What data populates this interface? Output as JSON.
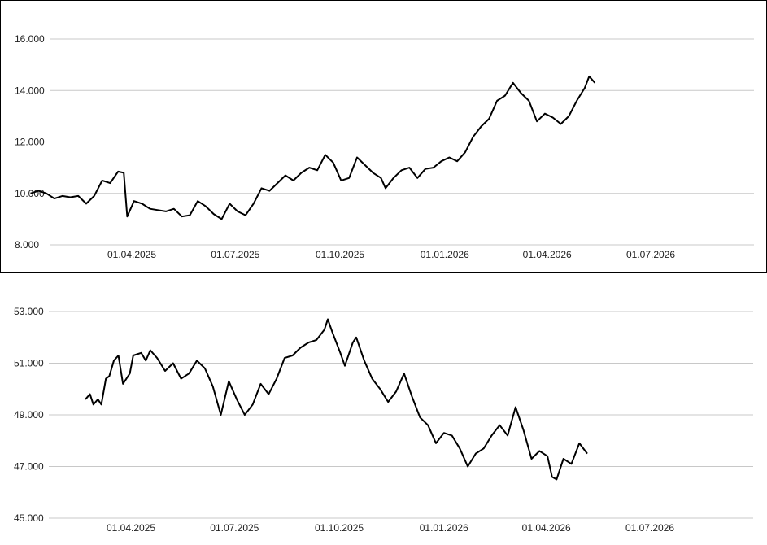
{
  "chart_data": [
    {
      "type": "line",
      "title": "",
      "xlabel": "",
      "ylabel": "",
      "grid": true,
      "legend": "none",
      "xlim": [
        "2025-01-01",
        "2026-09-30"
      ],
      "x_ticks": [
        "01.04.2025",
        "01.07.2025",
        "01.10.2025",
        "01.01.2026",
        "01.04.2026",
        "01.07.2026"
      ],
      "y_ticks": [
        "8.000",
        "10.000",
        "12.000",
        "14.000",
        "16.000"
      ],
      "ylim": [
        8,
        16
      ],
      "series": [
        {
          "color": "#000000",
          "points": [
            [
              "2025-01-02",
              10.0
            ],
            [
              "2025-01-09",
              10.1
            ],
            [
              "2025-01-16",
              10.0
            ],
            [
              "2025-01-23",
              9.8
            ],
            [
              "2025-01-30",
              9.9
            ],
            [
              "2025-02-06",
              9.85
            ],
            [
              "2025-02-13",
              9.9
            ],
            [
              "2025-02-20",
              9.6
            ],
            [
              "2025-02-27",
              9.9
            ],
            [
              "2025-03-06",
              10.5
            ],
            [
              "2025-03-13",
              10.4
            ],
            [
              "2025-03-20",
              10.85
            ],
            [
              "2025-03-25",
              10.8
            ],
            [
              "2025-03-28",
              9.1
            ],
            [
              "2025-04-03",
              9.7
            ],
            [
              "2025-04-10",
              9.6
            ],
            [
              "2025-04-17",
              9.4
            ],
            [
              "2025-04-24",
              9.35
            ],
            [
              "2025-05-01",
              9.3
            ],
            [
              "2025-05-08",
              9.4
            ],
            [
              "2025-05-15",
              9.1
            ],
            [
              "2025-05-22",
              9.15
            ],
            [
              "2025-05-29",
              9.7
            ],
            [
              "2025-06-05",
              9.5
            ],
            [
              "2025-06-12",
              9.2
            ],
            [
              "2025-06-19",
              9.0
            ],
            [
              "2025-06-26",
              9.6
            ],
            [
              "2025-07-03",
              9.3
            ],
            [
              "2025-07-10",
              9.15
            ],
            [
              "2025-07-17",
              9.6
            ],
            [
              "2025-07-24",
              10.2
            ],
            [
              "2025-07-31",
              10.1
            ],
            [
              "2025-08-07",
              10.4
            ],
            [
              "2025-08-14",
              10.7
            ],
            [
              "2025-08-21",
              10.5
            ],
            [
              "2025-08-28",
              10.8
            ],
            [
              "2025-09-04",
              11.0
            ],
            [
              "2025-09-11",
              10.9
            ],
            [
              "2025-09-18",
              11.5
            ],
            [
              "2025-09-25",
              11.2
            ],
            [
              "2025-10-02",
              10.5
            ],
            [
              "2025-10-09",
              10.6
            ],
            [
              "2025-10-16",
              11.4
            ],
            [
              "2025-10-23",
              11.1
            ],
            [
              "2025-10-30",
              10.8
            ],
            [
              "2025-11-06",
              10.6
            ],
            [
              "2025-11-10",
              10.2
            ],
            [
              "2025-11-17",
              10.6
            ],
            [
              "2025-11-24",
              10.9
            ],
            [
              "2025-12-01",
              11.0
            ],
            [
              "2025-12-08",
              10.6
            ],
            [
              "2025-12-15",
              10.95
            ],
            [
              "2025-12-22",
              11.0
            ],
            [
              "2025-12-29",
              11.25
            ],
            [
              "2026-01-05",
              11.4
            ],
            [
              "2026-01-12",
              11.25
            ],
            [
              "2026-01-19",
              11.6
            ],
            [
              "2026-01-26",
              12.2
            ],
            [
              "2026-02-02",
              12.6
            ],
            [
              "2026-02-09",
              12.9
            ],
            [
              "2026-02-16",
              13.6
            ],
            [
              "2026-02-23",
              13.8
            ],
            [
              "2026-03-02",
              14.3
            ],
            [
              "2026-03-09",
              13.9
            ],
            [
              "2026-03-16",
              13.6
            ],
            [
              "2026-03-23",
              12.8
            ],
            [
              "2026-03-30",
              13.1
            ],
            [
              "2026-04-06",
              12.95
            ],
            [
              "2026-04-13",
              12.7
            ],
            [
              "2026-04-20",
              13.0
            ],
            [
              "2026-04-27",
              13.6
            ],
            [
              "2026-05-04",
              14.1
            ],
            [
              "2026-05-08",
              14.55
            ],
            [
              "2026-05-13",
              14.3
            ]
          ]
        }
      ]
    },
    {
      "type": "line",
      "title": "",
      "xlabel": "",
      "ylabel": "",
      "grid": true,
      "legend": "none",
      "xlim": [
        "2025-01-01",
        "2026-09-30"
      ],
      "x_ticks": [
        "01.04.2025",
        "01.07.2025",
        "01.10.2025",
        "01.01.2026",
        "01.04.2026",
        "01.07.2026"
      ],
      "y_ticks": [
        "45.000",
        "47.000",
        "49.000",
        "51.000",
        "53.000"
      ],
      "ylim": [
        45,
        53
      ],
      "series": [
        {
          "color": "#000000",
          "points": [
            [
              "2025-02-20",
              49.6
            ],
            [
              "2025-02-24",
              49.8
            ],
            [
              "2025-02-27",
              49.4
            ],
            [
              "2025-03-03",
              49.6
            ],
            [
              "2025-03-06",
              49.4
            ],
            [
              "2025-03-10",
              50.4
            ],
            [
              "2025-03-13",
              50.5
            ],
            [
              "2025-03-17",
              51.1
            ],
            [
              "2025-03-21",
              51.3
            ],
            [
              "2025-03-25",
              50.2
            ],
            [
              "2025-03-31",
              50.6
            ],
            [
              "2025-04-03",
              51.3
            ],
            [
              "2025-04-10",
              51.4
            ],
            [
              "2025-04-14",
              51.1
            ],
            [
              "2025-04-18",
              51.5
            ],
            [
              "2025-04-24",
              51.2
            ],
            [
              "2025-05-01",
              50.7
            ],
            [
              "2025-05-08",
              51.0
            ],
            [
              "2025-05-15",
              50.4
            ],
            [
              "2025-05-22",
              50.6
            ],
            [
              "2025-05-29",
              51.1
            ],
            [
              "2025-06-05",
              50.8
            ],
            [
              "2025-06-12",
              50.1
            ],
            [
              "2025-06-19",
              49.0
            ],
            [
              "2025-06-26",
              50.3
            ],
            [
              "2025-07-03",
              49.6
            ],
            [
              "2025-07-10",
              49.0
            ],
            [
              "2025-07-17",
              49.4
            ],
            [
              "2025-07-24",
              50.2
            ],
            [
              "2025-07-31",
              49.8
            ],
            [
              "2025-08-07",
              50.4
            ],
            [
              "2025-08-14",
              51.2
            ],
            [
              "2025-08-21",
              51.3
            ],
            [
              "2025-08-28",
              51.6
            ],
            [
              "2025-09-04",
              51.8
            ],
            [
              "2025-09-11",
              51.9
            ],
            [
              "2025-09-18",
              52.3
            ],
            [
              "2025-09-21",
              52.7
            ],
            [
              "2025-09-25",
              52.2
            ],
            [
              "2025-10-02",
              51.4
            ],
            [
              "2025-10-06",
              50.9
            ],
            [
              "2025-10-13",
              51.8
            ],
            [
              "2025-10-16",
              52.0
            ],
            [
              "2025-10-23",
              51.1
            ],
            [
              "2025-10-30",
              50.4
            ],
            [
              "2025-11-06",
              50.0
            ],
            [
              "2025-11-13",
              49.5
            ],
            [
              "2025-11-20",
              49.9
            ],
            [
              "2025-11-27",
              50.6
            ],
            [
              "2025-12-04",
              49.7
            ],
            [
              "2025-12-11",
              48.9
            ],
            [
              "2025-12-18",
              48.6
            ],
            [
              "2025-12-25",
              47.9
            ],
            [
              "2026-01-01",
              48.3
            ],
            [
              "2026-01-08",
              48.2
            ],
            [
              "2026-01-15",
              47.7
            ],
            [
              "2026-01-22",
              47.0
            ],
            [
              "2026-01-29",
              47.5
            ],
            [
              "2026-02-05",
              47.7
            ],
            [
              "2026-02-12",
              48.2
            ],
            [
              "2026-02-19",
              48.6
            ],
            [
              "2026-02-26",
              48.2
            ],
            [
              "2026-03-05",
              49.3
            ],
            [
              "2026-03-12",
              48.4
            ],
            [
              "2026-03-19",
              47.3
            ],
            [
              "2026-03-26",
              47.6
            ],
            [
              "2026-04-02",
              47.4
            ],
            [
              "2026-04-06",
              46.6
            ],
            [
              "2026-04-10",
              46.5
            ],
            [
              "2026-04-16",
              47.3
            ],
            [
              "2026-04-23",
              47.1
            ],
            [
              "2026-04-30",
              47.9
            ],
            [
              "2026-05-07",
              47.5
            ]
          ]
        }
      ]
    }
  ]
}
